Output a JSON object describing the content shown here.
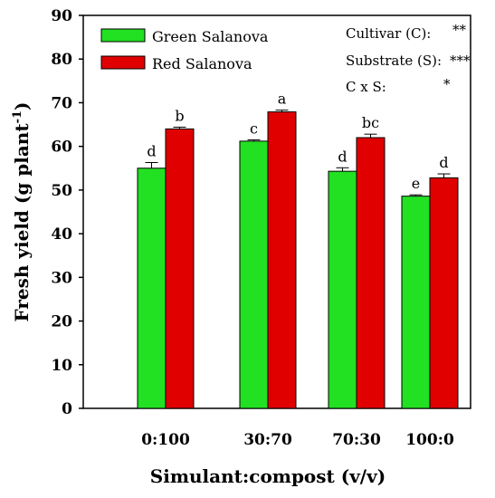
{
  "chart_data": {
    "type": "bar",
    "categories": [
      "0:100",
      "30:70",
      "70:30",
      "100:0"
    ],
    "series": [
      {
        "name": "Green Salanova",
        "color": "#22e022",
        "values": [
          55.0,
          61.2,
          54.3,
          48.6
        ],
        "errors": [
          1.3,
          0.3,
          0.8,
          0.3
        ],
        "letters": [
          "d",
          "c",
          "d",
          "e"
        ]
      },
      {
        "name": "Red Salanova",
        "color": "#e00000",
        "values": [
          64.0,
          67.9,
          62.0,
          52.8
        ],
        "errors": [
          0.4,
          0.4,
          0.8,
          0.9
        ],
        "letters": [
          "b",
          "a",
          "bc",
          "d"
        ]
      }
    ],
    "xlabel": "Simulant:compost (v/v)",
    "ylabel": "Fresh yield (g plant-1)",
    "ylabel_main": "Fresh yield (g plant",
    "ylabel_sup": "-1",
    "ylabel_close": ")",
    "ylim": [
      0,
      90
    ],
    "yticks": [
      "0",
      "10",
      "20",
      "30",
      "40",
      "50",
      "60",
      "70",
      "80",
      "90"
    ],
    "grid": false,
    "legend_position": "top-left",
    "annotations": [
      {
        "label": "Cultivar (C):",
        "value": "**"
      },
      {
        "label": "Substrate (S):",
        "value": "***"
      },
      {
        "label": "C x S:",
        "value": "*"
      }
    ]
  }
}
